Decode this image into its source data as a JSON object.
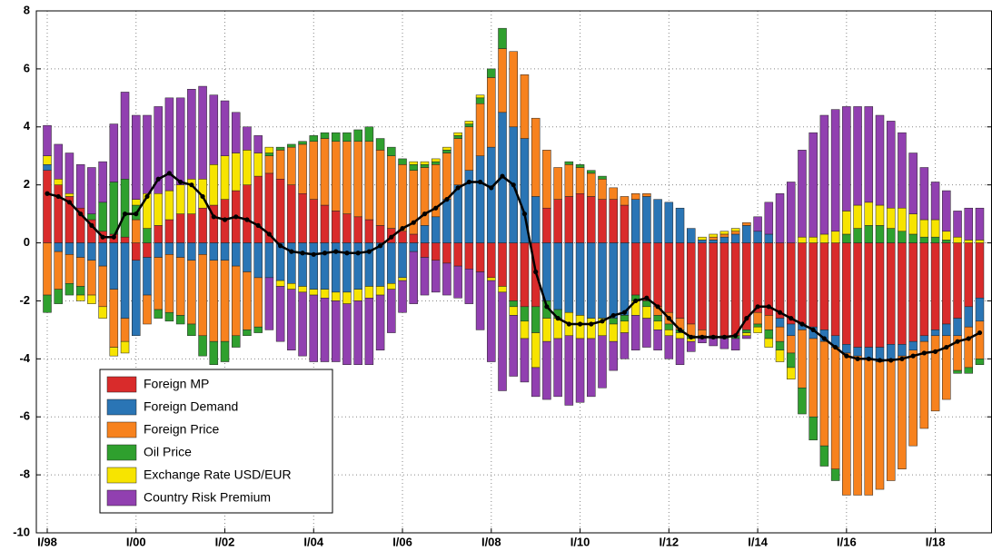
{
  "chart_data": {
    "type": "stacked_bar",
    "categories": [
      "I/98",
      null,
      null,
      null,
      null,
      null,
      null,
      null,
      "I/00",
      null,
      null,
      null,
      null,
      null,
      null,
      null,
      "I/02",
      null,
      null,
      null,
      null,
      null,
      null,
      null,
      "I/04",
      null,
      null,
      null,
      null,
      null,
      null,
      null,
      "I/06",
      null,
      null,
      null,
      null,
      null,
      null,
      null,
      "I/08",
      null,
      null,
      null,
      null,
      null,
      null,
      null,
      "I/10",
      null,
      null,
      null,
      null,
      null,
      null,
      null,
      "I/12",
      null,
      null,
      null,
      null,
      null,
      null,
      null,
      "I/14",
      null,
      null,
      null,
      null,
      null,
      null,
      null,
      "I/16",
      null,
      null,
      null,
      null,
      null,
      null,
      null,
      "I/18",
      null,
      null,
      null,
      null
    ],
    "series": [
      {
        "name": "Foreign MP",
        "color": "#d92b2b",
        "values": [
          2.5,
          2.0,
          1.6,
          1.2,
          0.8,
          0.4,
          0.3,
          0.2,
          -0.6,
          -0.5,
          0.6,
          0.8,
          1.0,
          1.0,
          1.2,
          1.3,
          1.5,
          1.8,
          2.0,
          2.3,
          2.4,
          2.2,
          2.0,
          1.7,
          1.5,
          1.3,
          1.1,
          1.0,
          0.9,
          0.8,
          0.6,
          0.5,
          0.4,
          0.3,
          -0.5,
          -0.6,
          -0.7,
          -0.8,
          -0.9,
          -1.0,
          -1.2,
          -1.5,
          -2.0,
          -2.2,
          -2.2,
          1.2,
          1.5,
          1.6,
          1.7,
          1.6,
          1.5,
          1.5,
          1.3,
          -1.8,
          -2.0,
          -2.2,
          -2.4,
          -2.6,
          -2.8,
          -3.0,
          -3.2,
          -3.2,
          -3.2,
          -3.0,
          -2.4,
          -2.5,
          -2.6,
          -2.8,
          -2.8,
          -2.9,
          -3.0,
          -3.2,
          -3.5,
          -3.6,
          -3.6,
          -3.6,
          -3.5,
          -3.5,
          -3.4,
          -3.2,
          -3.0,
          -2.8,
          -2.6,
          -2.2,
          -1.9
        ]
      },
      {
        "name": "Foreign Demand",
        "color": "#2a75b5",
        "values": [
          0.2,
          -0.3,
          -0.4,
          -0.5,
          -0.6,
          -0.8,
          -1.6,
          -2.6,
          -2.6,
          -1.3,
          -0.5,
          -0.4,
          -0.5,
          -0.6,
          -0.4,
          -0.6,
          -0.6,
          -0.8,
          -1.0,
          -1.2,
          -1.2,
          -1.3,
          -1.4,
          -1.5,
          -1.6,
          -1.6,
          -1.7,
          -1.7,
          -1.6,
          -1.5,
          -1.5,
          -1.4,
          -1.2,
          -0.3,
          0.6,
          0.9,
          1.5,
          2.0,
          2.5,
          3.0,
          3.3,
          4.5,
          4.0,
          3.6,
          1.6,
          -2.0,
          -2.3,
          -2.4,
          -2.5,
          -2.6,
          -2.6,
          -2.6,
          -2.5,
          1.5,
          1.6,
          1.5,
          1.4,
          1.2,
          0.5,
          0.1,
          0.1,
          0.2,
          0.3,
          0.6,
          0.4,
          0.3,
          -0.3,
          -0.4,
          -0.2,
          -0.4,
          -0.4,
          -0.4,
          -0.3,
          -0.3,
          -0.4,
          -0.5,
          -0.5,
          -0.4,
          -0.3,
          -0.2,
          -0.2,
          -0.4,
          -0.6,
          -0.7,
          -0.8
        ]
      },
      {
        "name": "Foreign Price",
        "color": "#f7821e",
        "values": [
          -1.8,
          -1.3,
          -1.0,
          -1.0,
          -1.2,
          -1.4,
          -2.0,
          -0.8,
          0.8,
          -1.0,
          -1.8,
          -2.0,
          -2.0,
          -2.2,
          -2.8,
          -2.8,
          -2.8,
          -2.4,
          -2.0,
          -1.7,
          0.6,
          1.0,
          1.3,
          1.7,
          2.0,
          2.3,
          2.4,
          2.5,
          2.6,
          2.7,
          2.6,
          2.5,
          2.3,
          2.2,
          2.0,
          1.8,
          1.6,
          1.6,
          1.5,
          1.8,
          2.4,
          2.2,
          2.6,
          2.2,
          2.7,
          2.0,
          1.1,
          1.1,
          0.9,
          0.8,
          0.7,
          0.4,
          0.3,
          0.2,
          0.1,
          -0.3,
          -0.4,
          -0.4,
          -0.4,
          -0.2,
          0.1,
          0.1,
          0.1,
          0.1,
          -0.4,
          -0.5,
          -0.5,
          -0.6,
          -2.0,
          -2.7,
          -3.6,
          -4.2,
          -4.9,
          -4.8,
          -4.7,
          -4.4,
          -4.2,
          -3.9,
          -3.3,
          -3.0,
          -2.6,
          -2.2,
          -1.2,
          -1.4,
          -1.3
        ]
      },
      {
        "name": "Oil Price",
        "color": "#2fa02e",
        "values": [
          -0.6,
          -0.5,
          -0.4,
          -0.3,
          0.2,
          1.0,
          1.8,
          2.0,
          0.5,
          0.5,
          -0.3,
          -0.3,
          -0.3,
          -0.4,
          -0.7,
          -0.8,
          -0.7,
          -0.4,
          -0.2,
          -0.2,
          0.1,
          0.1,
          0.1,
          0.1,
          0.2,
          0.2,
          0.3,
          0.3,
          0.4,
          0.5,
          0.4,
          0.3,
          0.2,
          0.2,
          0.1,
          0.1,
          0.1,
          0.1,
          0.1,
          0.2,
          0.3,
          0.7,
          -0.2,
          -0.5,
          -0.9,
          -0.6,
          -0.3,
          0.1,
          0.1,
          0.1,
          0.1,
          -0.2,
          -0.2,
          -0.2,
          -0.2,
          -0.2,
          -0.2,
          -0.1,
          -0.1,
          -0.1,
          -0.1,
          -0.1,
          -0.1,
          -0.1,
          -0.1,
          -0.3,
          -0.3,
          -0.5,
          -0.9,
          -0.8,
          -0.7,
          -0.4,
          0.3,
          0.5,
          0.6,
          0.6,
          0.5,
          0.4,
          0.3,
          0.2,
          0.2,
          0.1,
          -0.1,
          -0.2,
          -0.2
        ]
      },
      {
        "name": "Exchange Rate USD/EUR",
        "color": "#f7e400",
        "values": [
          0.3,
          0.2,
          0.1,
          -0.2,
          -0.3,
          -0.4,
          -0.3,
          -0.4,
          0.2,
          1.2,
          1.1,
          1.0,
          1.0,
          1.2,
          1.0,
          1.4,
          1.5,
          1.3,
          1.2,
          0.8,
          0.2,
          -0.2,
          -0.2,
          -0.2,
          -0.2,
          -0.3,
          -0.3,
          -0.4,
          -0.4,
          -0.4,
          -0.3,
          -0.2,
          -0.1,
          0.1,
          0.1,
          0.1,
          0.1,
          0.1,
          0.1,
          0.1,
          -0.1,
          -0.2,
          -0.3,
          -0.6,
          -1.2,
          -0.8,
          -0.7,
          -0.8,
          -0.8,
          -0.7,
          -0.6,
          -0.6,
          -0.4,
          -0.5,
          -0.4,
          -0.3,
          -0.2,
          -0.2,
          -0.1,
          0.1,
          0.1,
          0.1,
          0.1,
          -0.1,
          -0.2,
          -0.3,
          -0.4,
          -0.4,
          0.2,
          0.2,
          0.3,
          0.4,
          0.8,
          0.8,
          0.8,
          0.7,
          0.7,
          0.8,
          0.7,
          0.6,
          0.6,
          0.3,
          0.2,
          0.1,
          0.1
        ]
      },
      {
        "name": "Country Risk Premium",
        "color": "#9140b0",
        "values": [
          1.05,
          1.2,
          1.4,
          1.5,
          1.6,
          1.4,
          2.0,
          3.0,
          2.9,
          2.7,
          3.0,
          3.2,
          3.0,
          3.1,
          3.2,
          2.4,
          1.9,
          1.4,
          0.8,
          0.6,
          -1.8,
          -1.9,
          -2.1,
          -2.2,
          -2.3,
          -2.2,
          -2.1,
          -2.1,
          -2.2,
          -2.3,
          -1.9,
          -1.5,
          -1.1,
          -1.8,
          -1.3,
          -1.1,
          -1.1,
          -1.1,
          -1.2,
          -2.0,
          -2.8,
          -3.4,
          -2.1,
          -1.5,
          -1.0,
          -2.0,
          -2.0,
          -2.4,
          -2.2,
          -2.0,
          -1.8,
          -1.0,
          -0.9,
          -1.2,
          -1.0,
          -0.7,
          -0.8,
          -0.9,
          -0.35,
          -0.15,
          -0.25,
          -0.35,
          -0.4,
          -0.1,
          0.5,
          1.1,
          1.7,
          2.1,
          3.0,
          3.6,
          4.1,
          4.2,
          3.6,
          3.4,
          3.3,
          3.1,
          3.0,
          2.6,
          2.1,
          1.8,
          1.3,
          1.4,
          0.9,
          1.1,
          1.1
        ]
      }
    ],
    "line": {
      "color": "#000000",
      "values": [
        1.7,
        1.6,
        1.4,
        1.0,
        0.6,
        0.2,
        0.2,
        1.0,
        1.0,
        1.6,
        2.2,
        2.4,
        2.1,
        2.0,
        1.6,
        0.9,
        0.8,
        0.9,
        0.8,
        0.6,
        0.3,
        -0.1,
        -0.3,
        -0.35,
        -0.4,
        -0.35,
        -0.3,
        -0.35,
        -0.35,
        -0.3,
        -0.1,
        0.2,
        0.5,
        0.7,
        1.0,
        1.2,
        1.5,
        1.9,
        2.1,
        2.1,
        1.9,
        2.3,
        2.0,
        1.0,
        -1.0,
        -2.2,
        -2.6,
        -2.8,
        -2.8,
        -2.8,
        -2.7,
        -2.5,
        -2.4,
        -2.0,
        -1.9,
        -2.2,
        -2.6,
        -3.0,
        -3.25,
        -3.25,
        -3.25,
        -3.25,
        -3.2,
        -2.6,
        -2.2,
        -2.2,
        -2.4,
        -2.6,
        -2.8,
        -3.0,
        -3.3,
        -3.6,
        -3.9,
        -4.0,
        -4.0,
        -4.05,
        -4.05,
        -4.0,
        -3.9,
        -3.8,
        -3.75,
        -3.6,
        -3.4,
        -3.3,
        -3.1
      ]
    },
    "ylim": [
      -10,
      8
    ],
    "yticks": [
      -10,
      -8,
      -6,
      -4,
      -2,
      0,
      2,
      4,
      6,
      8
    ],
    "grid": true,
    "legend": "lower left"
  }
}
